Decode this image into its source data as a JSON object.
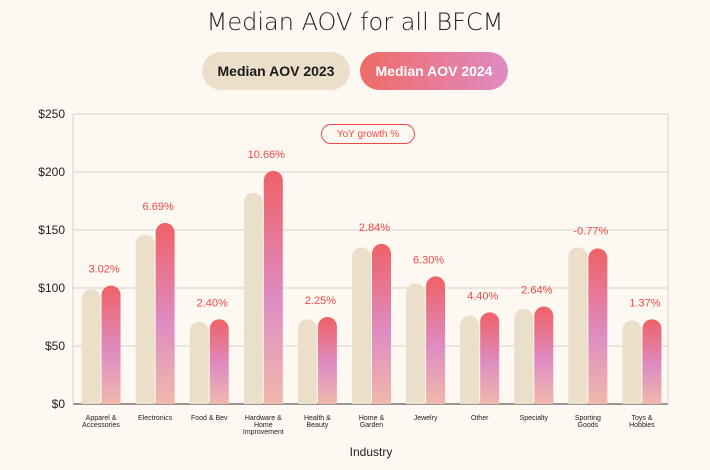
{
  "title": "Median AOV for all BFCM",
  "legend": {
    "series_2023": "Median AOV 2023",
    "series_2024": "Median AOV 2024"
  },
  "annotation": "YoY growth %",
  "colors": {
    "bar_2023": "#ebdfca",
    "bar_2024_top": "#ef6b67",
    "bar_2024_bottom": "#f0b3b2",
    "growth_label": "#f04a45"
  },
  "chart_data": {
    "type": "bar",
    "title": "Median AOV for all BFCM",
    "xlabel": "Industry",
    "ylabel": "",
    "ylim": [
      0,
      250
    ],
    "yticks": [
      0,
      50,
      100,
      150,
      200,
      250
    ],
    "ytick_labels": [
      "$0",
      "$50",
      "$100",
      "$150",
      "$200",
      "$250"
    ],
    "grid": true,
    "categories": [
      [
        "Apparel &",
        "Accessories"
      ],
      [
        "Electronics"
      ],
      [
        "Food & Bev"
      ],
      [
        "Hardware &",
        "Home",
        "Improvement"
      ],
      [
        "Health &",
        "Beauty"
      ],
      [
        "Home &",
        "Garden"
      ],
      [
        "Jewelry"
      ],
      [
        "Other"
      ],
      [
        "Specialty"
      ],
      [
        "Sporting",
        "Goods"
      ],
      [
        "Toys &",
        "Hobbies"
      ]
    ],
    "series": [
      {
        "name": "Median AOV 2023",
        "values": [
          99,
          146,
          71,
          182,
          73,
          135,
          104,
          76,
          82,
          135,
          72
        ]
      },
      {
        "name": "Median AOV 2024",
        "values": [
          102,
          156,
          73,
          201,
          75,
          138,
          110,
          79,
          84,
          134,
          73
        ]
      }
    ],
    "growth_labels": [
      "3.02%",
      "6.69%",
      "2.40%",
      "10.66%",
      "2.25%",
      "2.84%",
      "6.30%",
      "4.40%",
      "2.64%",
      "-0.77%",
      "1.37%"
    ]
  }
}
